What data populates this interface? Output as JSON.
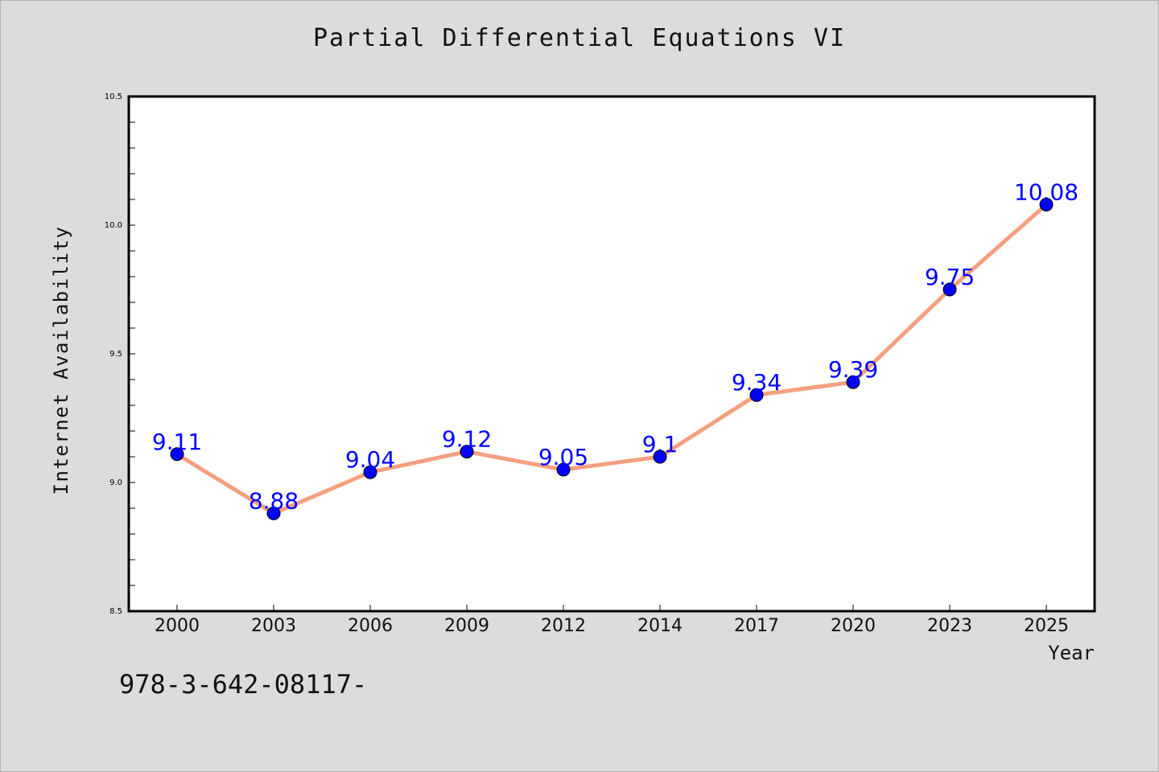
{
  "chart_data": {
    "type": "line",
    "title": "Partial Differential Equations VI",
    "xlabel": "Year",
    "ylabel": "Internet Availability",
    "categories": [
      "2000",
      "2003",
      "2006",
      "2009",
      "2012",
      "2014",
      "2017",
      "2020",
      "2023",
      "2025"
    ],
    "series": [
      {
        "values": [
          9.11,
          8.88,
          9.04,
          9.12,
          9.05,
          9.1,
          9.34,
          9.39,
          9.75,
          10.08
        ],
        "data_labels": [
          "9.11",
          "8.88",
          "9.04",
          "9.12",
          "9.05",
          "9.1",
          "9.34",
          "9.39",
          "9.75",
          "10.08"
        ],
        "line_color": "#f4a07f",
        "marker_color": "#0000ff",
        "label_color": "#0000ff"
      }
    ],
    "ylim": [
      8.5,
      10.5
    ],
    "yticks": [
      "8.5",
      "9.0",
      "9.5",
      "10.0",
      "10.5"
    ],
    "grid": false,
    "legend": "none"
  },
  "footer_note": "978-3-642-08117-",
  "colors": {
    "background": "#dcdcdc",
    "plot_background": "#ffffff",
    "axis": "#000000"
  }
}
